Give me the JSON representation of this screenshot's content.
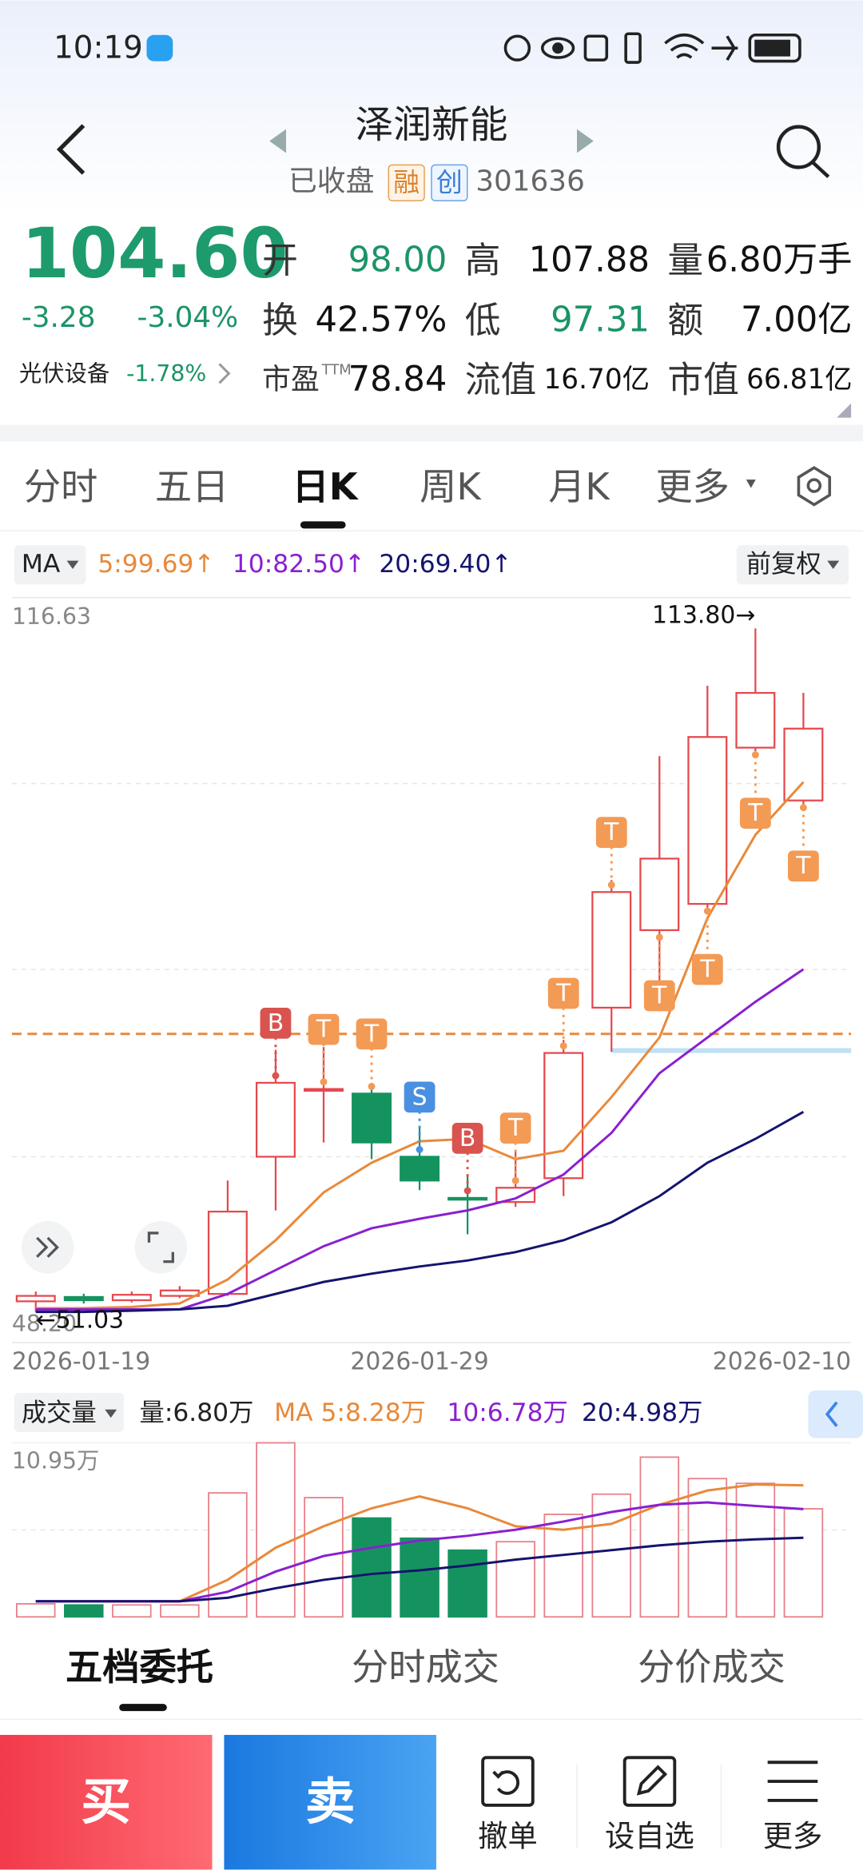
{
  "status_bar": {
    "time": "10:19"
  },
  "header": {
    "title": "泽润新能",
    "status": "已收盘",
    "badges": [
      "融",
      "创"
    ],
    "code": "301636"
  },
  "quote": {
    "price": "104.60",
    "change": "-3.28",
    "change_pct": "-3.04%",
    "sector": "光伏设备",
    "sector_change": "-1.78%",
    "down_color": "#1b9466",
    "fields": [
      {
        "label": "开",
        "value": "98.00",
        "color": "#1b9466"
      },
      {
        "label": "高",
        "value": "107.88"
      },
      {
        "label": "量",
        "value": "6.80万手"
      },
      {
        "label": "换",
        "value": "42.57%"
      },
      {
        "label": "低",
        "value": "97.31",
        "color": "#1b9466"
      },
      {
        "label": "额",
        "value": "7.00亿"
      },
      {
        "label": "市盈",
        "sup": "TTM",
        "value": "78.84"
      },
      {
        "label": "流值",
        "value": "16.70亿"
      },
      {
        "label": "市值",
        "value": "66.81亿"
      }
    ]
  },
  "tabs": [
    "分时",
    "五日",
    "日K",
    "周K",
    "月K",
    "更多"
  ],
  "chart_data": {
    "type": "candlestick",
    "indicator": "MA",
    "adjust": "前复权",
    "categories": [
      "2026-01-19",
      null,
      null,
      null,
      null,
      null,
      null,
      null,
      "2026-01-29",
      null,
      null,
      null,
      null,
      null,
      null,
      null,
      "2026-02-10"
    ],
    "candles": [
      {
        "open": 52.0,
        "high": 52.9,
        "low": 51.03,
        "close": 52.5
      },
      {
        "open": 52.4,
        "high": 52.7,
        "low": 51.8,
        "close": 52.1
      },
      {
        "open": 52.1,
        "high": 52.9,
        "low": 51.9,
        "close": 52.6
      },
      {
        "open": 52.5,
        "high": 53.4,
        "low": 52.3,
        "close": 53.0
      },
      {
        "open": 52.68,
        "high": 63.09,
        "low": 52.5,
        "close": 60.24
      },
      {
        "open": 65.28,
        "high": 75.1,
        "low": 60.35,
        "close": 72.07
      },
      {
        "open": 71.41,
        "high": 75.36,
        "low": 66.59,
        "close": 71.5
      },
      {
        "open": 71.08,
        "high": 72.07,
        "low": 65.06,
        "close": 66.59
      },
      {
        "open": 65.28,
        "high": 68.02,
        "low": 62.21,
        "close": 63.09
      },
      {
        "open": 61.5,
        "high": 63.64,
        "low": 58.16,
        "close": 61.44
      },
      {
        "open": 61.12,
        "high": 65.83,
        "low": 60.68,
        "close": 62.43
      },
      {
        "open": 63.31,
        "high": 76.01,
        "low": 61.66,
        "close": 74.81
      },
      {
        "open": 78.97,
        "high": 90.69,
        "low": 74.92,
        "close": 89.59
      },
      {
        "open": 86.09,
        "high": 102.08,
        "low": 78.97,
        "close": 92.66
      },
      {
        "open": 88.5,
        "high": 108.54,
        "low": 88.06,
        "close": 103.83
      },
      {
        "open": 102.85,
        "high": 113.8,
        "low": 102.52,
        "close": 107.88
      },
      {
        "open": 98.0,
        "high": 107.88,
        "low": 97.31,
        "close": 104.6
      }
    ],
    "series": [
      {
        "legend": "5:99.69↑",
        "color": "#e8893a",
        "values": [
          51.37,
          51.37,
          51.48,
          51.81,
          54.0,
          57.61,
          62.0,
          64.73,
          66.7,
          66.92,
          65.06,
          65.83,
          70.76,
          76.23,
          87.19,
          94.85,
          99.69
        ]
      },
      {
        "legend": "10:82.50↑",
        "color": "#8a1fd1",
        "values": [
          51.26,
          51.26,
          51.26,
          51.26,
          52.68,
          54.87,
          57.06,
          58.71,
          59.58,
          60.35,
          61.45,
          63.64,
          67.47,
          72.95,
          76.23,
          79.51,
          82.5
        ]
      },
      {
        "legend": "20:69.40↑",
        "color": "#14146e",
        "values": [
          51.03,
          51.03,
          51.14,
          51.26,
          51.59,
          52.68,
          53.78,
          54.54,
          55.2,
          55.75,
          56.52,
          57.61,
          59.26,
          61.66,
          64.73,
          66.92,
          69.4
        ]
      }
    ],
    "ylim": [
      48.2,
      116.63
    ],
    "yticks": [
      {
        "value": 48.2,
        "label": "48.20"
      },
      116.63
    ],
    "max_label": "113.80→",
    "min_label": "←51.03",
    "signals": [
      null,
      null,
      null,
      null,
      null,
      "B",
      "T",
      "T",
      "S",
      "B",
      "T",
      "T",
      "T",
      "T",
      "T",
      "T",
      "T"
    ],
    "cost_line": 76.56,
    "support_line": 75.03,
    "up_color": "#e5484d",
    "down_color": "#15935f"
  },
  "volume_chart": {
    "type": "bar",
    "title": "成交量",
    "legend": [
      "量:6.80万",
      "MA 5:8.28万",
      "10:6.78万",
      "20:4.98万"
    ],
    "values": [
      0.82,
      0.75,
      0.75,
      0.75,
      7.8,
      10.95,
      7.5,
      6.22,
      4.95,
      4.2,
      4.73,
      6.45,
      7.72,
      10.05,
      8.7,
      8.4,
      6.8
    ],
    "ylim": [
      0,
      10.95
    ],
    "yticks": [
      {
        "value": 10.95,
        "label": "10.95万"
      }
    ],
    "series": [
      {
        "color": "#e8893a",
        "values": [
          0.98,
          0.98,
          0.98,
          0.98,
          2.33,
          4.35,
          5.7,
          6.83,
          7.58,
          6.83,
          5.7,
          5.48,
          5.85,
          7.05,
          7.95,
          8.33,
          8.28
        ]
      },
      {
        "color": "#8a1fd1",
        "values": [
          0.98,
          0.98,
          0.98,
          0.98,
          1.58,
          2.85,
          3.83,
          4.35,
          4.8,
          5.1,
          5.48,
          6.0,
          6.6,
          7.05,
          7.2,
          6.98,
          6.78
        ]
      },
      {
        "color": "#14146e",
        "values": [
          0.98,
          0.98,
          0.98,
          0.98,
          1.2,
          1.8,
          2.33,
          2.7,
          2.93,
          3.23,
          3.6,
          3.9,
          4.2,
          4.5,
          4.73,
          4.88,
          4.98
        ]
      }
    ]
  },
  "bottom_tabs": [
    "五档委托",
    "分时成交",
    "分价成交"
  ],
  "actions": {
    "buy": "买",
    "sell": "卖",
    "tools": [
      "撤单",
      "设自选",
      "更多"
    ]
  }
}
